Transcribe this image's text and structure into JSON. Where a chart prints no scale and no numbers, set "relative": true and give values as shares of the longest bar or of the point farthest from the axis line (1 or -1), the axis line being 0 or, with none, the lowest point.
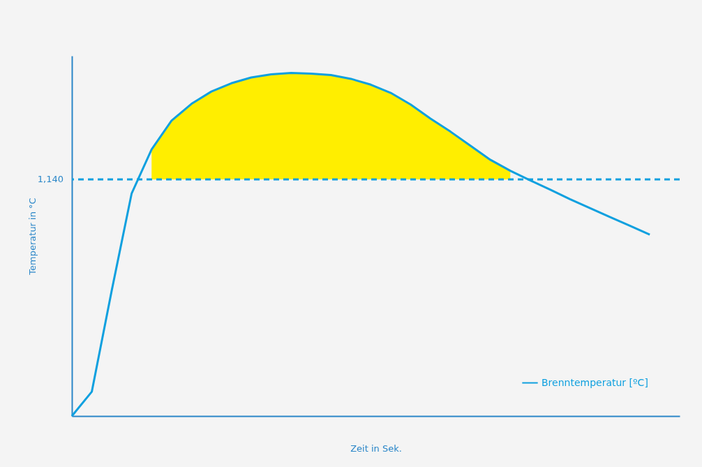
{
  "chart_data": {
    "type": "line",
    "relative": true,
    "xlabel": "Zeit in Sek.",
    "ylabel": "Temperatur in °C",
    "legend": "bottom right",
    "annotations": [
      "1,140"
    ],
    "grid": false,
    "categories": [
      null,
      null,
      null,
      null,
      null,
      null,
      null,
      null,
      null,
      null,
      null,
      null,
      null,
      null,
      null,
      null,
      null,
      null,
      null,
      null,
      null,
      null,
      null,
      null,
      null,
      null,
      null,
      null,
      null,
      null
    ],
    "series": [
      {
        "name": "Brenntemperatur  [ºC]",
        "color": "#0fa0df",
        "values": [
          0,
          0.071,
          0.366,
          0.649,
          0.777,
          0.861,
          0.91,
          0.946,
          0.97,
          0.987,
          0.996,
          1,
          0.998,
          0.994,
          0.983,
          0.966,
          0.942,
          0.908,
          0.867,
          0.829,
          0.788,
          0.747,
          0.715,
          0.687,
          0.66,
          0.632,
          0.606,
          0.58,
          0.555,
          0.529
        ],
        "lower": [
          null,
          null,
          null,
          null,
          0.69,
          0.69,
          0.69,
          0.69,
          0.69,
          0.69,
          0.69,
          0.69,
          0.69,
          0.69,
          0.69,
          0.69,
          0.69,
          0.69,
          0.69,
          0.69,
          0.69,
          0.69,
          0.69,
          null,
          null,
          null,
          null,
          null,
          null,
          null
        ],
        "upper": [
          null,
          null,
          null,
          null,
          0.777,
          0.861,
          0.91,
          0.946,
          0.97,
          0.987,
          0.996,
          1,
          0.998,
          0.994,
          0.983,
          0.966,
          0.942,
          0.908,
          0.867,
          0.829,
          0.788,
          0.747,
          0.715,
          null,
          null,
          null,
          null,
          null,
          null,
          null
        ]
      }
    ],
    "ref_lines": [
      {
        "axis": "y",
        "value": 0.69,
        "label": null,
        "color": "#0fa0df",
        "line_style": "dashed"
      }
    ]
  }
}
